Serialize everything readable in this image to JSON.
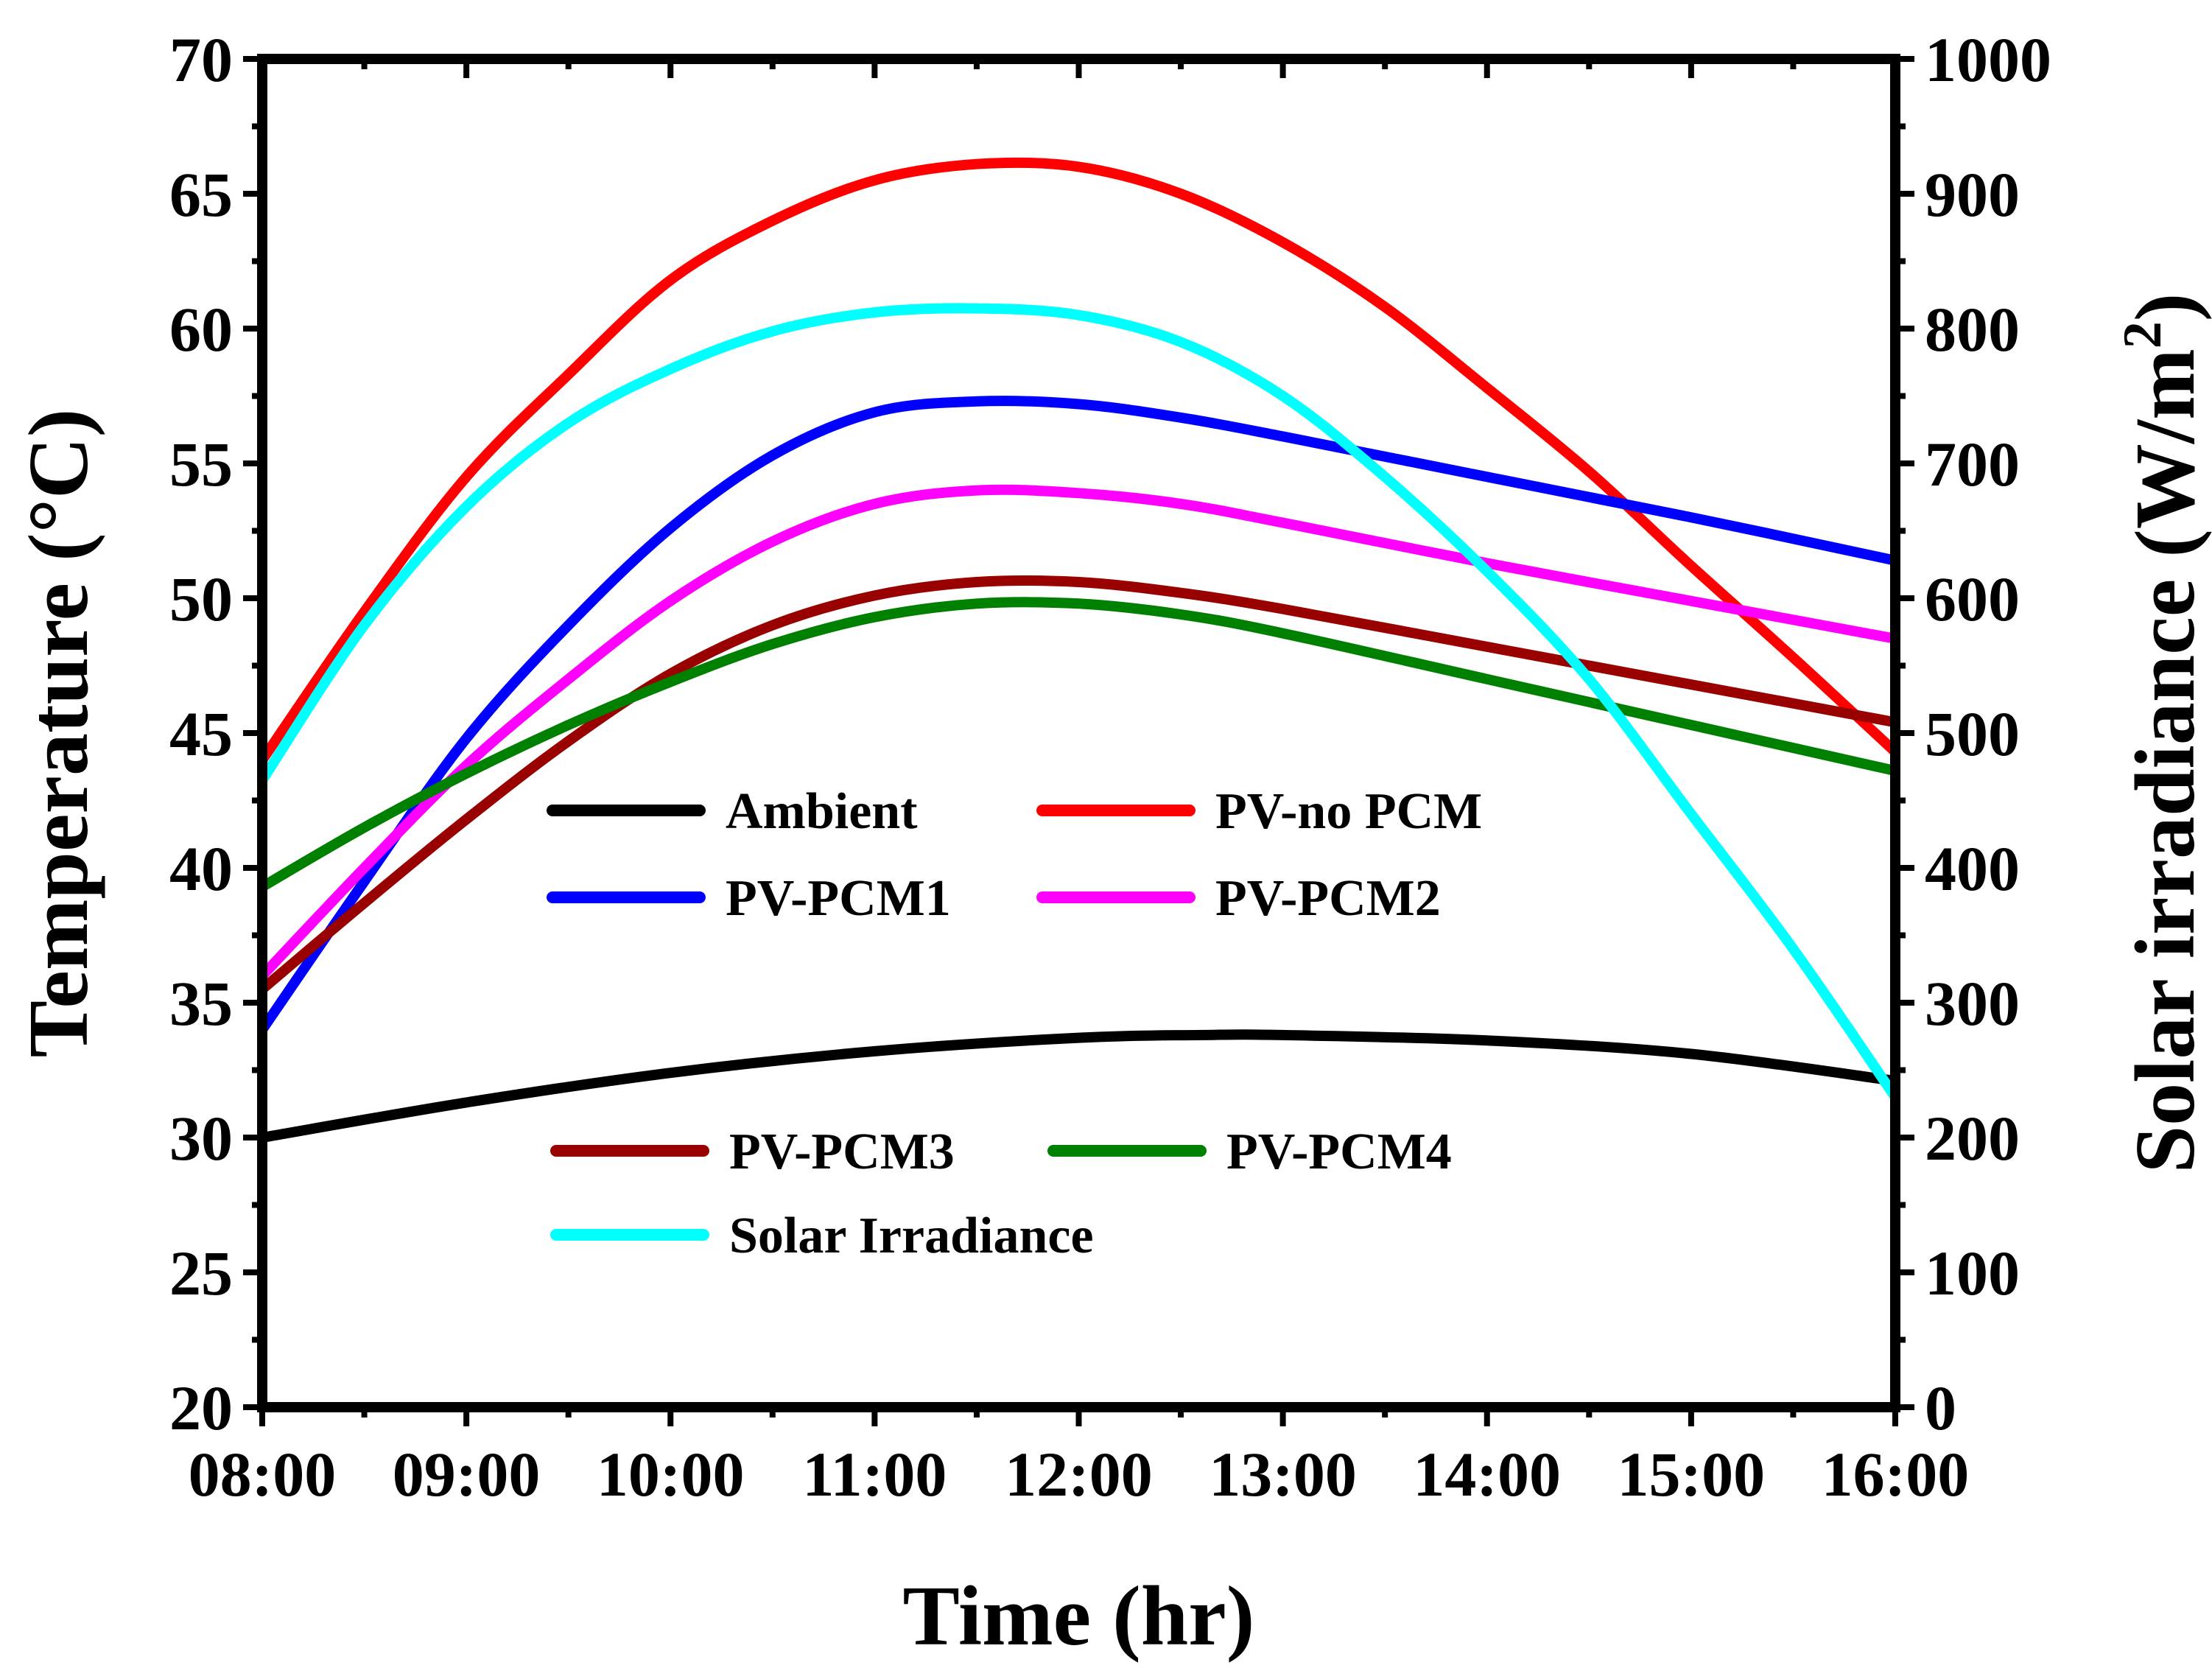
{
  "chart_data": {
    "type": "line",
    "title": "",
    "xlabel": "Time (hr)",
    "ylabel_left": "Temperature (°C)",
    "ylabel_right_main": "Solar irradiance (W/m",
    "ylabel_right_sup": "2",
    "ylabel_right_close": ")",
    "x_ticks": [
      "08:00",
      "09:00",
      "10:00",
      "11:00",
      "12:00",
      "13:00",
      "14:00",
      "15:00",
      "16:00"
    ],
    "x_range": [
      0,
      8
    ],
    "y_left_range": [
      20,
      70
    ],
    "y_left_ticks": [
      "20",
      "25",
      "30",
      "35",
      "40",
      "45",
      "50",
      "55",
      "60",
      "65",
      "70"
    ],
    "y_right_range": [
      0,
      1000
    ],
    "y_right_ticks": [
      "0",
      "100",
      "200",
      "300",
      "400",
      "500",
      "600",
      "700",
      "800",
      "900",
      "1000"
    ],
    "x_unit": "hours after 08:00",
    "series": [
      {
        "name": "Ambient",
        "color": "#000000",
        "axis": "left",
        "x": [
          0,
          1,
          2,
          3,
          4,
          4.6,
          5,
          6,
          7,
          8
        ],
        "y": [
          30.0,
          31.3,
          32.4,
          33.2,
          33.7,
          33.8,
          33.8,
          33.6,
          33.1,
          32.1
        ]
      },
      {
        "name": "PV-no PCM",
        "color": "#ff0000",
        "axis": "left",
        "x": [
          0,
          0.5,
          1,
          1.5,
          2,
          2.5,
          3,
          3.5,
          4,
          4.5,
          5,
          5.5,
          6,
          6.5,
          7,
          7.5,
          8
        ],
        "y": [
          44.0,
          49.5,
          54.5,
          58.3,
          61.8,
          64.0,
          65.5,
          66.1,
          66.0,
          65.0,
          63.2,
          60.8,
          57.8,
          54.7,
          51.2,
          47.8,
          44.3
        ]
      },
      {
        "name": "PV-PCM1",
        "color": "#0000ff",
        "axis": "left",
        "x": [
          0,
          0.5,
          1,
          1.5,
          2,
          2.5,
          3,
          3.5,
          4,
          4.5,
          5,
          6,
          7,
          8
        ],
        "y": [
          34.0,
          39.5,
          44.8,
          49.0,
          52.6,
          55.3,
          56.9,
          57.3,
          57.2,
          56.7,
          56.0,
          54.5,
          53.0,
          51.4
        ]
      },
      {
        "name": "PV-PCM2",
        "color": "#ff00ff",
        "axis": "left",
        "x": [
          0,
          0.5,
          1,
          1.5,
          2,
          2.5,
          3,
          3.5,
          4,
          4.5,
          5,
          6,
          7,
          8
        ],
        "y": [
          36.0,
          40.0,
          43.8,
          47.0,
          49.9,
          52.1,
          53.5,
          54.0,
          53.9,
          53.5,
          52.8,
          51.3,
          49.9,
          48.5
        ]
      },
      {
        "name": "PV-PCM3",
        "color": "#990000",
        "axis": "left",
        "x": [
          0,
          0.5,
          1,
          1.5,
          2,
          2.5,
          3,
          3.5,
          4,
          4.5,
          5,
          6,
          7,
          8
        ],
        "y": [
          35.5,
          38.7,
          41.8,
          44.7,
          47.2,
          49.0,
          50.1,
          50.6,
          50.6,
          50.2,
          49.6,
          48.2,
          46.8,
          45.4
        ]
      },
      {
        "name": "PV-PCM4",
        "color": "#008000",
        "axis": "left",
        "x": [
          0,
          0.5,
          1,
          1.5,
          2,
          2.5,
          3,
          3.5,
          4,
          4.5,
          5,
          6,
          7,
          8
        ],
        "y": [
          39.3,
          41.5,
          43.5,
          45.3,
          46.9,
          48.3,
          49.3,
          49.8,
          49.8,
          49.4,
          48.7,
          47.0,
          45.3,
          43.6
        ]
      },
      {
        "name": "Solar Irradiance",
        "color": "#00ffff",
        "axis": "right",
        "x": [
          0,
          0.5,
          1,
          1.5,
          2,
          2.5,
          3,
          3.5,
          4,
          4.5,
          5,
          5.5,
          6,
          6.5,
          7,
          7.5,
          8
        ],
        "y": [
          465,
          580,
          668,
          730,
          770,
          798,
          812,
          815,
          810,
          790,
          750,
          690,
          620,
          540,
          440,
          340,
          230
        ]
      }
    ],
    "legend": {
      "group_top": [
        {
          "name": "Ambient",
          "color": "#000000"
        },
        {
          "name": "PV-no PCM",
          "color": "#ff0000"
        },
        {
          "name": "PV-PCM1",
          "color": "#0000ff"
        },
        {
          "name": "PV-PCM2",
          "color": "#ff00ff"
        }
      ],
      "group_bottom": [
        {
          "name": "PV-PCM3",
          "color": "#990000"
        },
        {
          "name": "PV-PCM4",
          "color": "#008000"
        },
        {
          "name": "Solar Irradiance",
          "color": "#00ffff"
        }
      ]
    }
  }
}
